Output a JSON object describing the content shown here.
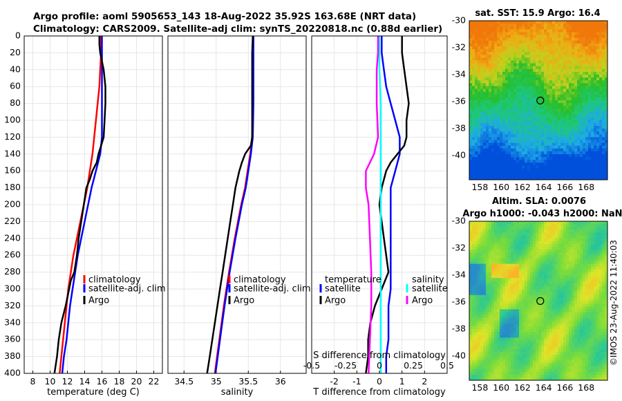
{
  "header": {
    "title_line1": "Argo profile: aoml 5905653_143 18-Aug-2022 35.92S 163.68E (NRT data)",
    "title_line2": "Climatology: CARS2009. Satellite-adj clim: synTS_20220818.nc (0.88d earlier)"
  },
  "credit": "©IMOS 23-Aug-2022 11:40:03",
  "colors": {
    "climatology": "#ff0000",
    "satellite": "#0000ff",
    "argo": "#000000",
    "salinity_satellite": "#00ffff",
    "salinity_argo": "#ff00ff"
  },
  "chart_data": [
    {
      "type": "line",
      "id": "temperature-profile",
      "xlabel": "temperature (deg C)",
      "ylabel": "",
      "xlim": [
        7,
        23
      ],
      "ylim": [
        400,
        0
      ],
      "xticks": [
        8,
        10,
        12,
        14,
        16,
        18,
        20,
        22
      ],
      "yticks": [
        0,
        20,
        40,
        60,
        80,
        100,
        120,
        140,
        160,
        180,
        200,
        220,
        240,
        260,
        280,
        300,
        320,
        340,
        360,
        380,
        400
      ],
      "legend": [
        "climatology",
        "satellite-adj. clim",
        "Argo"
      ],
      "legend_position": "lower-right",
      "series": [
        {
          "name": "climatology",
          "color": "#ff0000",
          "depth": [
            0,
            20,
            40,
            60,
            80,
            100,
            120,
            140,
            160,
            180,
            200,
            220,
            240,
            260,
            280,
            300,
            320,
            340,
            360,
            380,
            400
          ],
          "values": [
            15.9,
            15.9,
            15.8,
            15.7,
            15.5,
            15.3,
            15.1,
            14.9,
            14.6,
            14.3,
            13.9,
            13.5,
            13.1,
            12.7,
            12.4,
            12.1,
            11.9,
            11.7,
            11.5,
            11.3,
            11.1
          ]
        },
        {
          "name": "satellite-adj. clim",
          "color": "#0000ff",
          "depth": [
            0,
            20,
            40,
            60,
            80,
            100,
            120,
            140,
            160,
            180,
            200,
            220,
            240,
            260,
            280,
            300,
            320,
            340,
            360,
            380,
            400
          ],
          "values": [
            16.0,
            16.0,
            16.0,
            16.0,
            16.0,
            16.0,
            16.0,
            15.8,
            15.3,
            14.8,
            14.4,
            14.0,
            13.6,
            13.2,
            12.9,
            12.6,
            12.3,
            12.1,
            11.9,
            11.6,
            11.4
          ]
        },
        {
          "name": "Argo",
          "color": "#000000",
          "depth": [
            0,
            10,
            20,
            40,
            60,
            80,
            100,
            120,
            130,
            140,
            150,
            160,
            170,
            180,
            200,
            220,
            240,
            260,
            280,
            290,
            300,
            320,
            340,
            360,
            380,
            400
          ],
          "values": [
            15.7,
            15.7,
            15.8,
            16.2,
            16.4,
            16.4,
            16.3,
            16.2,
            15.9,
            15.6,
            15.4,
            14.9,
            14.6,
            14.2,
            13.9,
            13.6,
            13.3,
            13.1,
            12.8,
            12.4,
            12.2,
            11.8,
            11.3,
            11.0,
            10.8,
            10.5
          ]
        }
      ]
    },
    {
      "type": "line",
      "id": "salinity-profile",
      "xlabel": "salinity",
      "xlim": [
        34.25,
        36.4
      ],
      "ylim": [
        400,
        0
      ],
      "xticks": [
        34.5,
        35,
        35.5,
        36
      ],
      "legend": [
        "climatology",
        "satellite-adj. clim",
        "Argo"
      ],
      "legend_position": "lower-right",
      "series": [
        {
          "name": "climatology",
          "color": "#ff0000",
          "depth": [
            0,
            40,
            80,
            120,
            140,
            160,
            180,
            200,
            240,
            280,
            320,
            360,
            400
          ],
          "values": [
            35.57,
            35.57,
            35.57,
            35.56,
            35.53,
            35.49,
            35.45,
            35.39,
            35.29,
            35.2,
            35.12,
            35.05,
            34.98
          ]
        },
        {
          "name": "satellite-adj. clim",
          "color": "#0000ff",
          "depth": [
            0,
            40,
            80,
            120,
            140,
            160,
            180,
            200,
            240,
            280,
            320,
            360,
            400
          ],
          "values": [
            35.58,
            35.58,
            35.58,
            35.57,
            35.54,
            35.5,
            35.46,
            35.4,
            35.3,
            35.21,
            35.13,
            35.06,
            34.99
          ]
        },
        {
          "name": "Argo",
          "color": "#000000",
          "depth": [
            0,
            20,
            40,
            80,
            100,
            120,
            130,
            140,
            150,
            160,
            180,
            200,
            220,
            240,
            260,
            280,
            300,
            320,
            340,
            360,
            380,
            400
          ],
          "values": [
            35.57,
            35.56,
            35.56,
            35.56,
            35.56,
            35.56,
            35.54,
            35.45,
            35.4,
            35.36,
            35.3,
            35.26,
            35.22,
            35.18,
            35.14,
            35.1,
            35.06,
            35.02,
            34.98,
            34.94,
            34.9,
            34.86
          ]
        }
      ]
    },
    {
      "type": "line",
      "id": "difference-profile",
      "xlabel": "T difference from climatology",
      "top_xlabel": "S difference from climatology",
      "xlim": [
        -3,
        3
      ],
      "ylim": [
        400,
        0
      ],
      "xticks": [
        -2,
        -1,
        0,
        1,
        2
      ],
      "top_xticks": [
        "-0.5",
        "-0.25",
        "0",
        "0.25",
        "0.5"
      ],
      "legend_temperature": {
        "title": "temperature",
        "items": [
          "satellite",
          "Argo"
        ]
      },
      "legend_salinity": {
        "title": "salinity",
        "items": [
          "satellite",
          "Argo"
        ]
      },
      "series": [
        {
          "name": "temperature satellite",
          "color": "#0000ff",
          "depth": [
            0,
            20,
            40,
            60,
            80,
            100,
            120,
            140,
            160,
            180,
            200,
            220,
            240,
            260,
            280,
            300,
            320,
            340,
            360,
            380,
            400
          ],
          "values": [
            0.1,
            0.1,
            0.2,
            0.3,
            0.5,
            0.7,
            0.9,
            0.9,
            0.7,
            0.5,
            0.5,
            0.5,
            0.5,
            0.5,
            0.5,
            0.5,
            0.4,
            0.4,
            0.4,
            0.3,
            0.3
          ]
        },
        {
          "name": "temperature Argo",
          "color": "#000000",
          "depth": [
            0,
            10,
            20,
            40,
            60,
            80,
            100,
            120,
            130,
            140,
            150,
            160,
            180,
            200,
            220,
            240,
            260,
            280,
            300,
            320,
            340,
            360,
            380,
            400
          ],
          "values": [
            1.0,
            1.0,
            1.0,
            1.1,
            1.2,
            1.3,
            1.2,
            1.2,
            1.1,
            0.8,
            0.5,
            0.3,
            0.1,
            0.0,
            0.1,
            0.2,
            0.3,
            0.4,
            0.1,
            -0.2,
            -0.4,
            -0.5,
            -0.5,
            -0.6
          ]
        },
        {
          "name": "salinity satellite",
          "color": "#00ffff",
          "depth": [
            0,
            40,
            80,
            120,
            160,
            200,
            240,
            280,
            320,
            360,
            400
          ],
          "values": [
            0.0,
            0.0,
            0.01,
            0.01,
            0.01,
            0.01,
            0.01,
            0.01,
            0.01,
            0.01,
            0.01
          ]
        },
        {
          "name": "salinity Argo",
          "color": "#ff00ff",
          "depth": [
            0,
            20,
            40,
            80,
            120,
            140,
            160,
            180,
            200,
            240,
            280,
            320,
            360,
            400
          ],
          "values": [
            -0.01,
            -0.01,
            -0.02,
            -0.02,
            -0.01,
            -0.04,
            -0.1,
            -0.1,
            -0.08,
            -0.07,
            -0.06,
            -0.06,
            -0.07,
            -0.08
          ]
        }
      ]
    },
    {
      "type": "heatmap",
      "id": "sst-map",
      "title": "sat. SST: 15.9 Argo: 16.4",
      "xlim": [
        157,
        170
      ],
      "ylim": [
        -41.8,
        -30
      ],
      "xticks": [
        158,
        160,
        162,
        164,
        166,
        168
      ],
      "yticks": [
        -30,
        -32,
        -34,
        -36,
        -38,
        -40
      ],
      "marker": {
        "lon": 163.68,
        "lat": -35.92
      }
    },
    {
      "type": "heatmap",
      "id": "sla-map",
      "title_line1": "Altim. SLA: 0.0076",
      "title_line2": "Argo h1000: -0.043 h2000: NaN",
      "xlim": [
        157,
        170
      ],
      "ylim": [
        -41.8,
        -30
      ],
      "xticks": [
        158,
        160,
        162,
        164,
        166,
        168
      ],
      "yticks": [
        -30,
        -32,
        -34,
        -36,
        -38,
        -40
      ],
      "marker": {
        "lon": 163.68,
        "lat": -35.92
      }
    }
  ]
}
